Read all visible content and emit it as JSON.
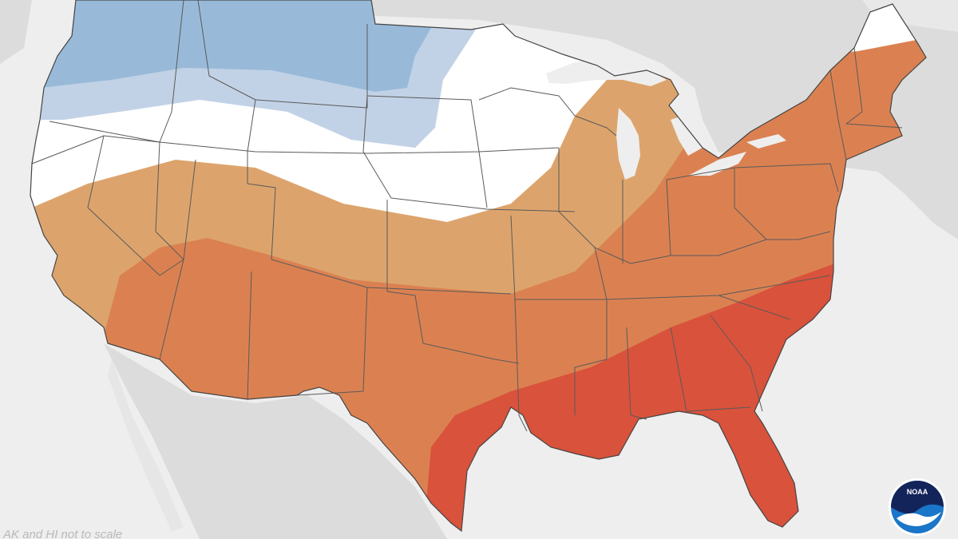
{
  "map": {
    "footnote": "AK and HI not to scale",
    "logo_text": "NOAA",
    "categories": [
      {
        "name": "below-normal-strong",
        "color": "#98bad8"
      },
      {
        "name": "below-normal-weak",
        "color": "#c2d2e6"
      },
      {
        "name": "equal-chances",
        "color": "#ffffff"
      },
      {
        "name": "above-normal-weak",
        "color": "#dca46c"
      },
      {
        "name": "above-normal-moderate",
        "color": "#db8151"
      },
      {
        "name": "above-normal-strong",
        "color": "#d9523b"
      }
    ],
    "background_land_color": "#dcdcdc",
    "background_water_color": "#eeeeee"
  }
}
